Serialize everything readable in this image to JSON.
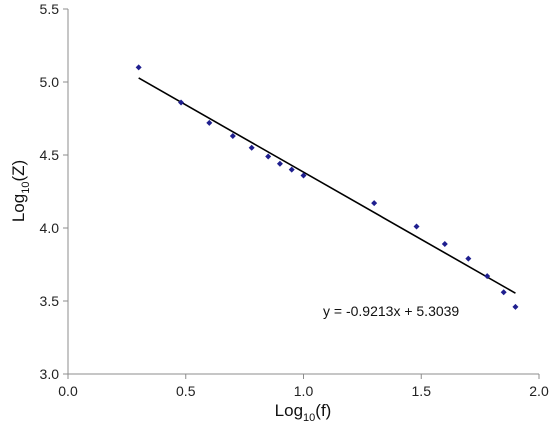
{
  "chart_data": {
    "type": "scatter",
    "title": "",
    "xlabel": {
      "prefix": "Log",
      "sub": "10",
      "suffix": "(f)"
    },
    "ylabel": {
      "prefix": "Log",
      "sub": "10",
      "suffix": "(Z)"
    },
    "xlim": [
      0.0,
      2.0
    ],
    "ylim": [
      3.0,
      5.5
    ],
    "xticks": [
      "0.0",
      "0.5",
      "1.0",
      "1.5",
      "2.0"
    ],
    "yticks": [
      "3.0",
      "3.5",
      "4.0",
      "4.5",
      "5.0",
      "5.5"
    ],
    "xtick_values": [
      0.0,
      0.5,
      1.0,
      1.5,
      2.0
    ],
    "ytick_values": [
      3.0,
      3.5,
      4.0,
      4.5,
      5.0,
      5.5
    ],
    "grid": false,
    "legend": "none",
    "series": [
      {
        "marker": "diamond",
        "color": "#1f1f8f",
        "points": [
          {
            "x": 0.3,
            "y": 5.1
          },
          {
            "x": 0.48,
            "y": 4.86
          },
          {
            "x": 0.6,
            "y": 4.72
          },
          {
            "x": 0.7,
            "y": 4.63
          },
          {
            "x": 0.78,
            "y": 4.55
          },
          {
            "x": 0.85,
            "y": 4.49
          },
          {
            "x": 0.9,
            "y": 4.44
          },
          {
            "x": 0.95,
            "y": 4.4
          },
          {
            "x": 1.0,
            "y": 4.36
          },
          {
            "x": 1.3,
            "y": 4.17
          },
          {
            "x": 1.48,
            "y": 4.01
          },
          {
            "x": 1.6,
            "y": 3.89
          },
          {
            "x": 1.7,
            "y": 3.79
          },
          {
            "x": 1.78,
            "y": 3.67
          },
          {
            "x": 1.85,
            "y": 3.56
          },
          {
            "x": 1.9,
            "y": 3.46
          }
        ]
      }
    ],
    "trendline": {
      "slope": -0.9213,
      "intercept": 5.3039,
      "x_range": [
        0.3,
        1.9
      ],
      "color": "#000000",
      "equation": "y = -0.9213x + 5.3039"
    }
  }
}
